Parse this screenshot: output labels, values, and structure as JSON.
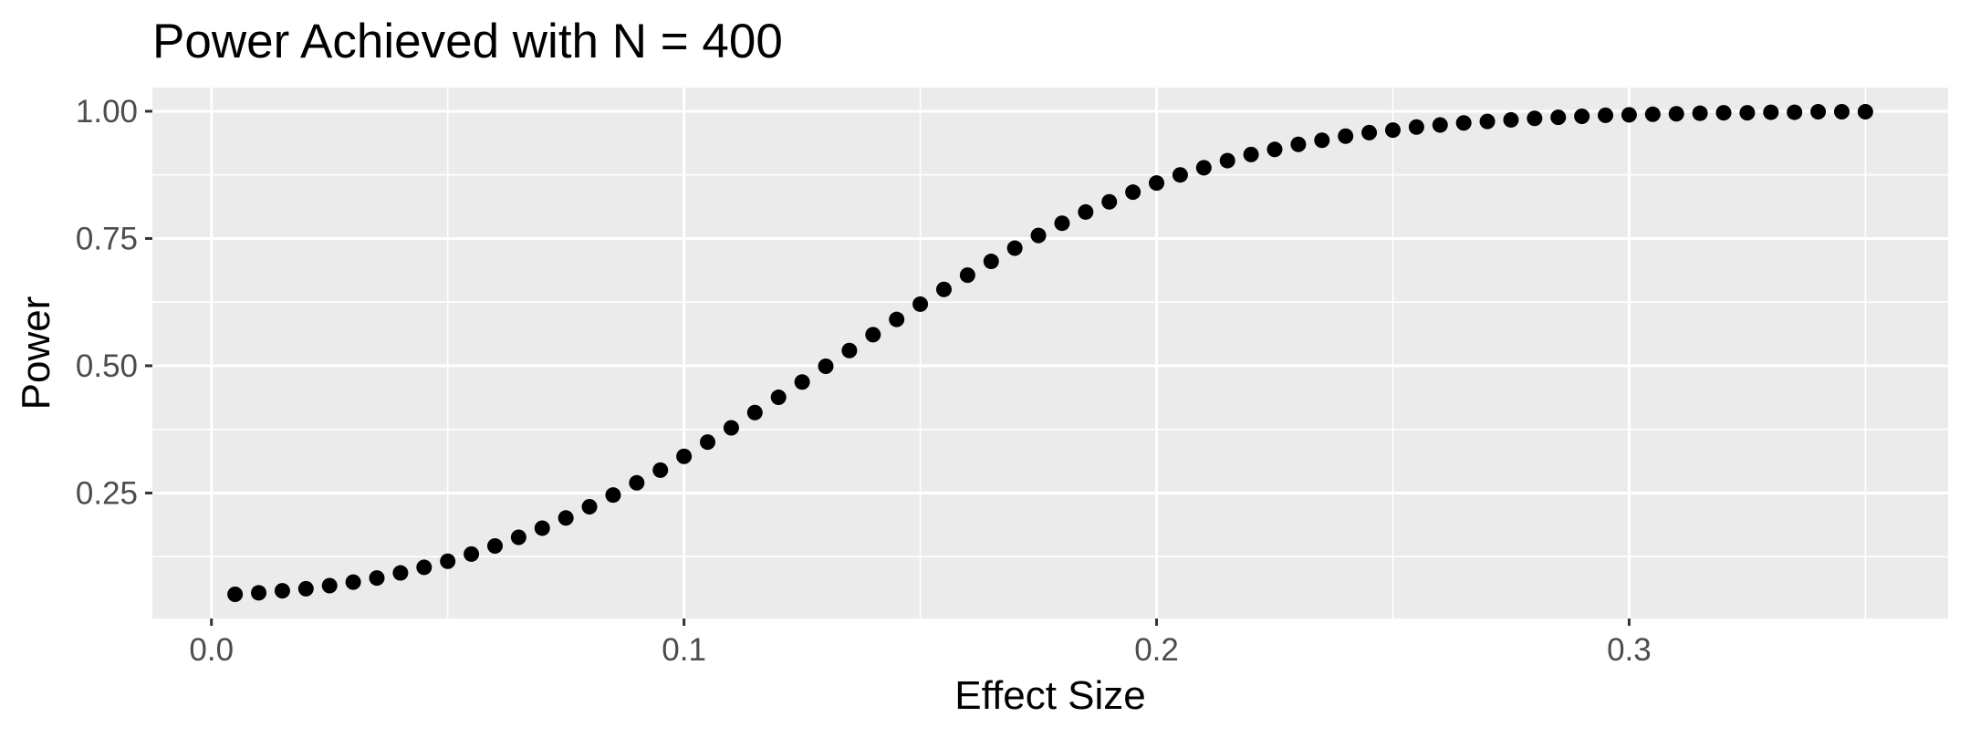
{
  "chart_data": {
    "type": "scatter",
    "title": "Power Achieved with N = 400",
    "xlabel": "Effect Size",
    "ylabel": "Power",
    "xlim": [
      -0.0125,
      0.3675
    ],
    "ylim": [
      0.0035,
      1.0465
    ],
    "xticks": [
      0.0,
      0.1,
      0.2,
      0.3
    ],
    "xtick_labels": [
      "0.0",
      "0.1",
      "0.2",
      "0.3"
    ],
    "yticks": [
      0.25,
      0.5,
      0.75,
      1.0
    ],
    "ytick_labels": [
      "0.25",
      "0.50",
      "0.75",
      "1.00"
    ],
    "grid": true,
    "colors": {
      "panel": "#ebebeb",
      "grid": "#ffffff",
      "point": "#000000",
      "tick_text": "#4d4d4d"
    },
    "x": [
      0.005,
      0.01,
      0.015,
      0.02,
      0.025,
      0.03,
      0.035,
      0.04,
      0.045,
      0.05,
      0.055,
      0.06,
      0.065,
      0.07,
      0.075,
      0.08,
      0.085,
      0.09,
      0.095,
      0.1,
      0.105,
      0.11,
      0.115,
      0.12,
      0.125,
      0.13,
      0.135,
      0.14,
      0.145,
      0.15,
      0.155,
      0.16,
      0.165,
      0.17,
      0.175,
      0.18,
      0.185,
      0.19,
      0.195,
      0.2,
      0.205,
      0.21,
      0.215,
      0.22,
      0.225,
      0.23,
      0.235,
      0.24,
      0.245,
      0.25,
      0.255,
      0.26,
      0.265,
      0.27,
      0.275,
      0.28,
      0.285,
      0.29,
      0.295,
      0.3,
      0.305,
      0.31,
      0.315,
      0.32,
      0.325,
      0.33,
      0.335,
      0.34,
      0.345,
      0.35
    ],
    "y": [
      0.051,
      0.054,
      0.058,
      0.062,
      0.068,
      0.075,
      0.083,
      0.093,
      0.104,
      0.116,
      0.13,
      0.146,
      0.163,
      0.181,
      0.201,
      0.223,
      0.246,
      0.27,
      0.295,
      0.322,
      0.35,
      0.378,
      0.408,
      0.438,
      0.468,
      0.499,
      0.53,
      0.561,
      0.591,
      0.621,
      0.65,
      0.678,
      0.705,
      0.731,
      0.756,
      0.78,
      0.802,
      0.822,
      0.841,
      0.859,
      0.875,
      0.889,
      0.903,
      0.915,
      0.925,
      0.935,
      0.943,
      0.951,
      0.958,
      0.963,
      0.969,
      0.973,
      0.977,
      0.98,
      0.983,
      0.986,
      0.988,
      0.99,
      0.992,
      0.993,
      0.994,
      0.995,
      0.996,
      0.997,
      0.997,
      0.998,
      0.998,
      0.999,
      0.999,
      0.999
    ]
  }
}
